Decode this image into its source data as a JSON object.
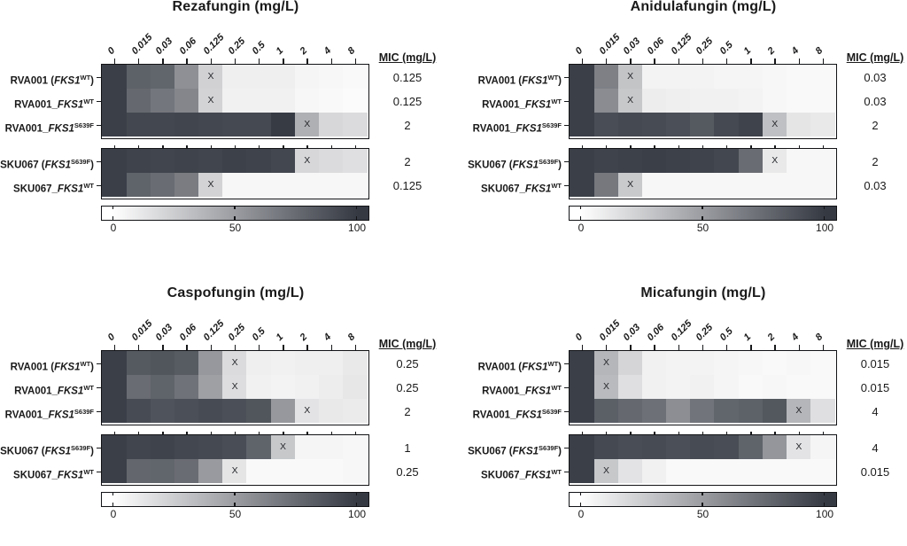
{
  "chart_data": [
    {
      "type": "heatmap",
      "title": "Rezafungin (mg/L)",
      "x_labels": [
        "0",
        "0.015",
        "0.03",
        "0.06",
        "0.125",
        "0.25",
        "0.5",
        "1",
        "2",
        "4",
        "8"
      ],
      "mic_header": "MIC (mg/L)",
      "mic_marker": "X",
      "colorbar_ticks": [
        "0",
        "50",
        "100"
      ],
      "colorscale": {
        "min": 0,
        "max": 100,
        "min_color": "#ffffff",
        "max_color": "#353942"
      },
      "groups": [
        {
          "rows": [
            {
              "label_parts": [
                {
                  "t": "RVA001 ("
                },
                {
                  "t": "FKS1",
                  "s": "italic"
                },
                {
                  "t": "WT",
                  "s": "sup"
                },
                {
                  "t": ")"
                }
              ],
              "mic": "0.125",
              "x_index": 4,
              "values": [
                97,
                80,
                78,
                56,
                23,
                8,
                8,
                8,
                5,
                4,
                3
              ]
            },
            {
              "label_parts": [
                {
                  "t": "RVA001_"
                },
                {
                  "t": "FKS1",
                  "s": "italic"
                },
                {
                  "t": "WT",
                  "s": "sup"
                }
              ],
              "mic": "0.125",
              "x_index": 4,
              "values": [
                97,
                76,
                69,
                61,
                22,
                7,
                7,
                7,
                4,
                3,
                2
              ]
            },
            {
              "label_parts": [
                {
                  "t": "RVA001_"
                },
                {
                  "t": "FKS1",
                  "s": "italic"
                },
                {
                  "t": "S639F",
                  "s": "sup"
                }
              ],
              "mic": "2",
              "x_index": 8,
              "values": [
                97,
                93,
                93,
                94,
                93,
                92,
                92,
                99,
                40,
                20,
                18
              ]
            }
          ]
        },
        {
          "rows": [
            {
              "label_parts": [
                {
                  "t": "SKU067 ("
                },
                {
                  "t": "FKS1",
                  "s": "italic"
                },
                {
                  "t": "S639F",
                  "s": "sup"
                },
                {
                  "t": ")"
                }
              ],
              "mic": "2",
              "x_index": 8,
              "values": [
                97,
                95,
                94,
                95,
                94,
                96,
                95,
                93,
                20,
                18,
                16
              ]
            },
            {
              "label_parts": [
                {
                  "t": "SKU067_"
                },
                {
                  "t": "FKS1",
                  "s": "italic"
                },
                {
                  "t": "WT",
                  "s": "sup"
                }
              ],
              "mic": "0.125",
              "x_index": 4,
              "values": [
                97,
                79,
                74,
                66,
                22,
                4,
                4,
                4,
                4,
                4,
                4
              ]
            }
          ]
        }
      ]
    },
    {
      "type": "heatmap",
      "title": "Anidulafungin (mg/L)",
      "x_labels": [
        "0",
        "0.015",
        "0.03",
        "0.06",
        "0.125",
        "0.25",
        "0.5",
        "1",
        "2",
        "4",
        "8"
      ],
      "mic_header": "MIC (mg/L)",
      "mic_marker": "X",
      "colorbar_ticks": [
        "0",
        "50",
        "100"
      ],
      "colorscale": {
        "min": 0,
        "max": 100,
        "min_color": "#ffffff",
        "max_color": "#353942"
      },
      "groups": [
        {
          "rows": [
            {
              "label_parts": [
                {
                  "t": "RVA001 ("
                },
                {
                  "t": "FKS1",
                  "s": "italic"
                },
                {
                  "t": "WT",
                  "s": "sup"
                },
                {
                  "t": ")"
                }
              ],
              "mic": "0.03",
              "x_index": 2,
              "values": [
                97,
                64,
                30,
                6,
                6,
                6,
                5,
                5,
                4,
                3,
                3
              ]
            },
            {
              "label_parts": [
                {
                  "t": "RVA001_"
                },
                {
                  "t": "FKS1",
                  "s": "italic"
                },
                {
                  "t": "WT",
                  "s": "sup"
                }
              ],
              "mic": "0.03",
              "x_index": 2,
              "values": [
                97,
                58,
                28,
                9,
                8,
                7,
                7,
                6,
                4,
                3,
                3
              ]
            },
            {
              "label_parts": [
                {
                  "t": "RVA001_"
                },
                {
                  "t": "FKS1",
                  "s": "italic"
                },
                {
                  "t": "S639F",
                  "s": "sup"
                }
              ],
              "mic": "2",
              "x_index": 8,
              "values": [
                97,
                90,
                92,
                91,
                89,
                84,
                92,
                95,
                32,
                13,
                11
              ]
            }
          ]
        },
        {
          "rows": [
            {
              "label_parts": [
                {
                  "t": "SKU067 ("
                },
                {
                  "t": "FKS1",
                  "s": "italic"
                },
                {
                  "t": "S639F",
                  "s": "sup"
                },
                {
                  "t": ")"
                }
              ],
              "mic": "2",
              "x_index": 8,
              "values": [
                97,
                95,
                96,
                97,
                96,
                95,
                93,
                74,
                11,
                4,
                4
              ]
            },
            {
              "label_parts": [
                {
                  "t": "SKU067_"
                },
                {
                  "t": "FKS1",
                  "s": "italic"
                },
                {
                  "t": "WT",
                  "s": "sup"
                }
              ],
              "mic": "0.03",
              "x_index": 2,
              "values": [
                97,
                68,
                27,
                4,
                4,
                4,
                4,
                4,
                4,
                4,
                4
              ]
            }
          ]
        }
      ]
    },
    {
      "type": "heatmap",
      "title": "Caspofungin (mg/L)",
      "x_labels": [
        "0",
        "0.015",
        "0.03",
        "0.06",
        "0.125",
        "0.25",
        "0.5",
        "1",
        "2",
        "4",
        "8"
      ],
      "mic_header": "MIC (mg/L)",
      "mic_marker": "X",
      "colorbar_ticks": [
        "0",
        "50",
        "100"
      ],
      "colorscale": {
        "min": 0,
        "max": 100,
        "min_color": "#ffffff",
        "max_color": "#353942"
      },
      "groups": [
        {
          "rows": [
            {
              "label_parts": [
                {
                  "t": "RVA001 ("
                },
                {
                  "t": "FKS1",
                  "s": "italic"
                },
                {
                  "t": "WT",
                  "s": "sup"
                },
                {
                  "t": ")"
                }
              ],
              "mic": "0.25",
              "x_index": 5,
              "values": [
                97,
                84,
                86,
                83,
                52,
                18,
                8,
                7,
                8,
                8,
                11
              ]
            },
            {
              "label_parts": [
                {
                  "t": "RVA001_"
                },
                {
                  "t": "FKS1",
                  "s": "italic"
                },
                {
                  "t": "WT",
                  "s": "sup"
                }
              ],
              "mic": "0.25",
              "x_index": 5,
              "values": [
                97,
                74,
                79,
                71,
                48,
                17,
                7,
                6,
                7,
                9,
                12
              ]
            },
            {
              "label_parts": [
                {
                  "t": "RVA001_"
                },
                {
                  "t": "FKS1",
                  "s": "italic"
                },
                {
                  "t": "S639F",
                  "s": "sup"
                }
              ],
              "mic": "2",
              "x_index": 8,
              "values": [
                97,
                91,
                87,
                89,
                91,
                89,
                86,
                52,
                14,
                11,
                10
              ]
            }
          ]
        },
        {
          "rows": [
            {
              "label_parts": [
                {
                  "t": "SKU067 ("
                },
                {
                  "t": "FKS1",
                  "s": "italic"
                },
                {
                  "t": "S639F",
                  "s": "sup"
                },
                {
                  "t": ")"
                }
              ],
              "mic": "1",
              "x_index": 7,
              "values": [
                97,
                94,
                95,
                93,
                92,
                90,
                79,
                28,
                5,
                5,
                4
              ]
            },
            {
              "label_parts": [
                {
                  "t": "SKU067_"
                },
                {
                  "t": "FKS1",
                  "s": "italic"
                },
                {
                  "t": "WT",
                  "s": "sup"
                }
              ],
              "mic": "0.25",
              "x_index": 5,
              "values": [
                97,
                77,
                78,
                74,
                51,
                13,
                3,
                3,
                3,
                3,
                4
              ]
            }
          ]
        }
      ]
    },
    {
      "type": "heatmap",
      "title": "Micafungin (mg/L)",
      "x_labels": [
        "0",
        "0.015",
        "0.03",
        "0.06",
        "0.125",
        "0.25",
        "0.5",
        "1",
        "2",
        "4",
        "8"
      ],
      "mic_header": "MIC (mg/L)",
      "mic_marker": "X",
      "colorbar_ticks": [
        "0",
        "50",
        "100"
      ],
      "colorscale": {
        "min": 0,
        "max": 100,
        "min_color": "#ffffff",
        "max_color": "#353942"
      },
      "groups": [
        {
          "rows": [
            {
              "label_parts": [
                {
                  "t": "RVA001 ("
                },
                {
                  "t": "FKS1",
                  "s": "italic"
                },
                {
                  "t": "WT",
                  "s": "sup"
                },
                {
                  "t": ")"
                }
              ],
              "mic": "0.015",
              "x_index": 1,
              "values": [
                97,
                37,
                21,
                7,
                6,
                6,
                5,
                4,
                3,
                4,
                3
              ]
            },
            {
              "label_parts": [
                {
                  "t": "RVA001_"
                },
                {
                  "t": "FKS1",
                  "s": "italic"
                },
                {
                  "t": "WT",
                  "s": "sup"
                }
              ],
              "mic": "0.015",
              "x_index": 1,
              "values": [
                97,
                35,
                16,
                7,
                6,
                7,
                5,
                3,
                4,
                3,
                3
              ]
            },
            {
              "label_parts": [
                {
                  "t": "RVA001_"
                },
                {
                  "t": "FKS1",
                  "s": "italic"
                },
                {
                  "t": "S639F",
                  "s": "sup"
                }
              ],
              "mic": "4",
              "x_index": 9,
              "values": [
                97,
                81,
                76,
                72,
                57,
                70,
                78,
                80,
                85,
                37,
                16
              ]
            }
          ]
        },
        {
          "rows": [
            {
              "label_parts": [
                {
                  "t": "SKU067 ("
                },
                {
                  "t": "FKS1",
                  "s": "italic"
                },
                {
                  "t": "S639F",
                  "s": "sup"
                },
                {
                  "t": ")"
                }
              ],
              "mic": "4",
              "x_index": 9,
              "values": [
                97,
                92,
                90,
                91,
                89,
                91,
                90,
                79,
                53,
                14,
                5
              ]
            },
            {
              "label_parts": [
                {
                  "t": "SKU067_"
                },
                {
                  "t": "FKS1",
                  "s": "italic"
                },
                {
                  "t": "WT",
                  "s": "sup"
                }
              ],
              "mic": "0.015",
              "x_index": 1,
              "values": [
                97,
                28,
                14,
                7,
                3,
                3,
                3,
                3,
                3,
                3,
                3
              ]
            }
          ]
        }
      ]
    }
  ]
}
